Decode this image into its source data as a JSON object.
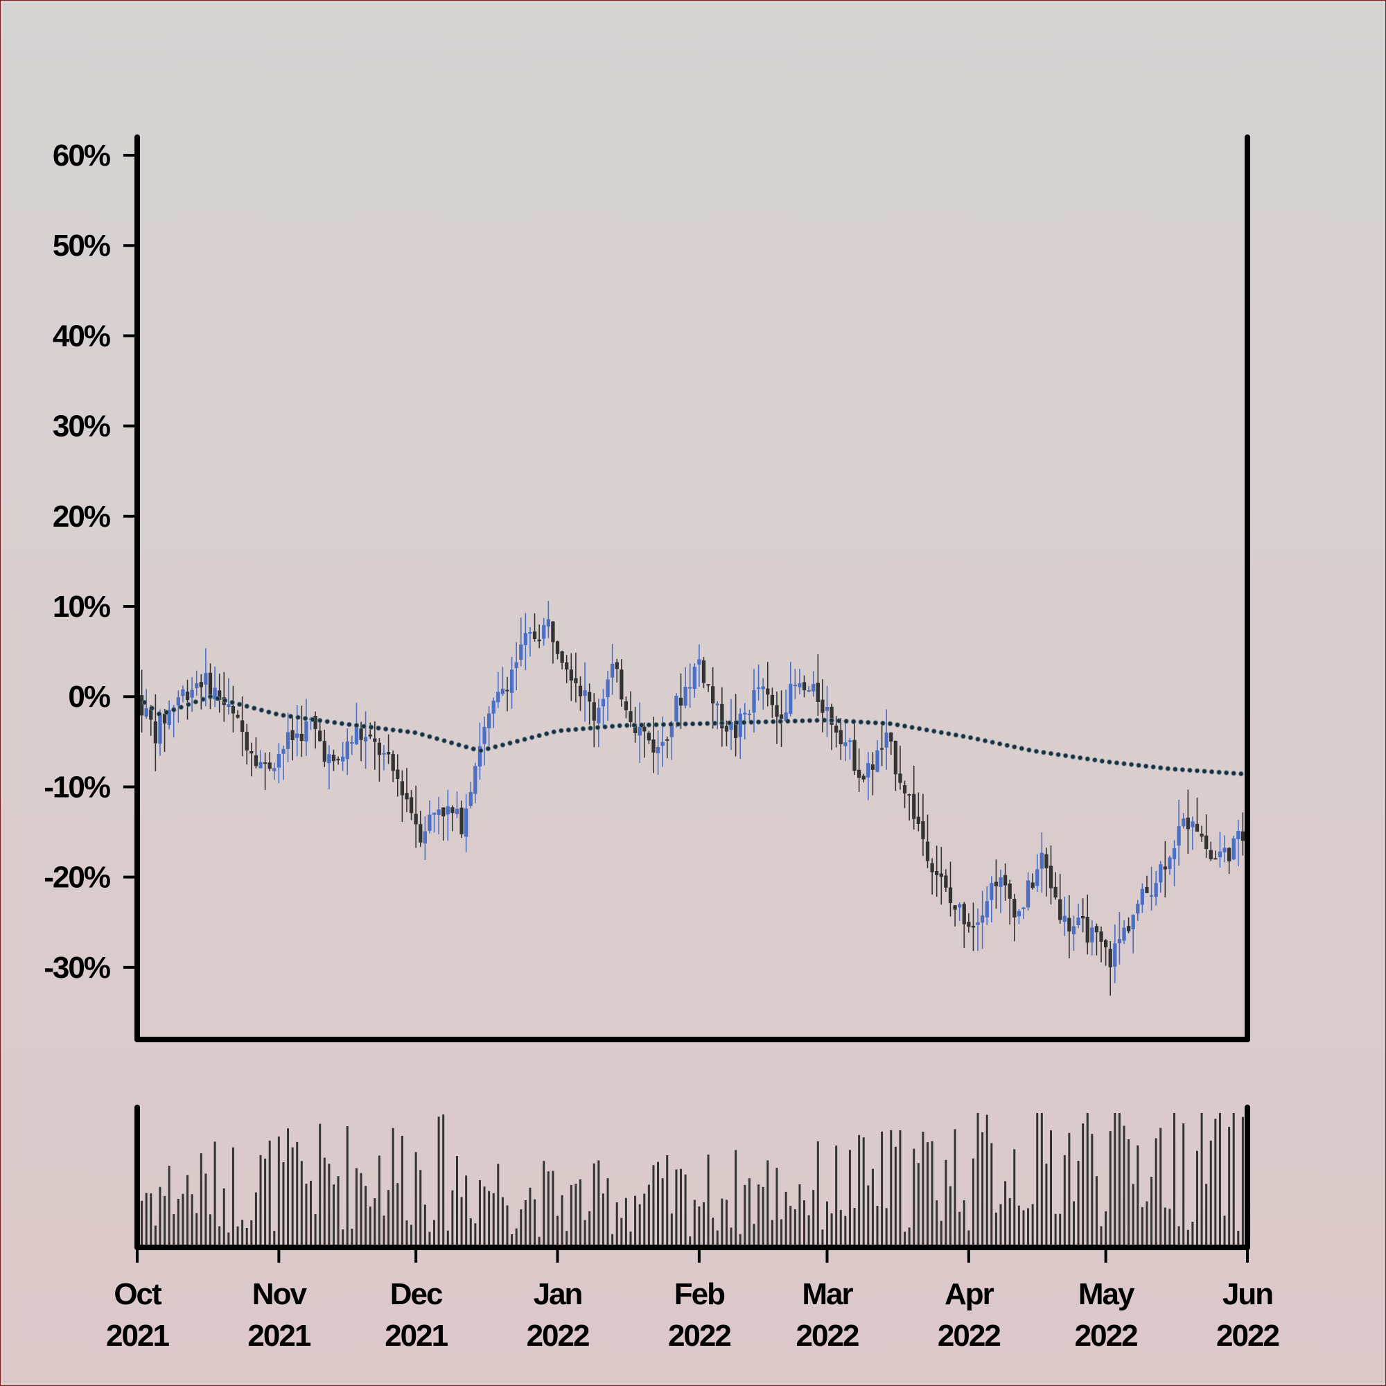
{
  "chart_data": {
    "type": "candlestick",
    "title": "",
    "xlabel": "",
    "ylabel": "",
    "y_axis_format": "percent change",
    "ylim": [
      -38,
      60
    ],
    "y_ticks": [
      60,
      50,
      40,
      30,
      20,
      10,
      0,
      -10,
      -20,
      -30
    ],
    "y_tick_labels": [
      "60%",
      "50%",
      "40%",
      "30%",
      "20%",
      "10%",
      "0%",
      "-10%",
      "-20%",
      "-30%"
    ],
    "x_range": [
      "2021-10-01",
      "2022-06-01"
    ],
    "x_ticks": [
      {
        "date": "2021-10-01",
        "month": "Oct",
        "year": "2021"
      },
      {
        "date": "2021-11-01",
        "month": "Nov",
        "year": "2021"
      },
      {
        "date": "2021-12-01",
        "month": "Dec",
        "year": "2021"
      },
      {
        "date": "2022-01-01",
        "month": "Jan",
        "year": "2022"
      },
      {
        "date": "2022-02-01",
        "month": "Feb",
        "year": "2022"
      },
      {
        "date": "2022-03-01",
        "month": "Mar",
        "year": "2022"
      },
      {
        "date": "2022-04-01",
        "month": "Apr",
        "year": "2022"
      },
      {
        "date": "2022-05-01",
        "month": "May",
        "year": "2022"
      },
      {
        "date": "2022-06-01",
        "month": "Jun",
        "year": "2022"
      }
    ],
    "price_path": [
      {
        "date": "2021-10-01",
        "value": 0
      },
      {
        "date": "2021-10-05",
        "value": -4
      },
      {
        "date": "2021-10-10",
        "value": 0
      },
      {
        "date": "2021-10-15",
        "value": 2
      },
      {
        "date": "2021-10-19",
        "value": 0
      },
      {
        "date": "2021-10-24",
        "value": -4
      },
      {
        "date": "2021-10-29",
        "value": -8
      },
      {
        "date": "2021-11-03",
        "value": -5
      },
      {
        "date": "2021-11-08",
        "value": -3
      },
      {
        "date": "2021-11-13",
        "value": -8
      },
      {
        "date": "2021-11-18",
        "value": -4
      },
      {
        "date": "2021-11-23",
        "value": -6
      },
      {
        "date": "2021-11-28",
        "value": -10
      },
      {
        "date": "2021-12-02",
        "value": -15
      },
      {
        "date": "2021-12-06",
        "value": -12
      },
      {
        "date": "2021-12-11",
        "value": -14
      },
      {
        "date": "2021-12-15",
        "value": -5
      },
      {
        "date": "2021-12-20",
        "value": 1
      },
      {
        "date": "2021-12-25",
        "value": 6
      },
      {
        "date": "2021-12-30",
        "value": 8
      },
      {
        "date": "2022-01-04",
        "value": 3
      },
      {
        "date": "2022-01-09",
        "value": -2
      },
      {
        "date": "2022-01-13",
        "value": 3
      },
      {
        "date": "2022-01-18",
        "value": -3
      },
      {
        "date": "2022-01-23",
        "value": -6
      },
      {
        "date": "2022-01-27",
        "value": -1
      },
      {
        "date": "2022-02-01",
        "value": 4
      },
      {
        "date": "2022-02-05",
        "value": -2
      },
      {
        "date": "2022-02-09",
        "value": -4
      },
      {
        "date": "2022-02-14",
        "value": 1
      },
      {
        "date": "2022-02-18",
        "value": -2
      },
      {
        "date": "2022-02-22",
        "value": 1
      },
      {
        "date": "2022-02-27",
        "value": 0
      },
      {
        "date": "2022-03-04",
        "value": -4
      },
      {
        "date": "2022-03-09",
        "value": -9
      },
      {
        "date": "2022-03-14",
        "value": -5
      },
      {
        "date": "2022-03-18",
        "value": -10
      },
      {
        "date": "2022-03-23",
        "value": -17
      },
      {
        "date": "2022-03-28",
        "value": -23
      },
      {
        "date": "2022-04-02",
        "value": -25
      },
      {
        "date": "2022-04-07",
        "value": -20
      },
      {
        "date": "2022-04-12",
        "value": -24
      },
      {
        "date": "2022-04-17",
        "value": -18
      },
      {
        "date": "2022-04-22",
        "value": -25
      },
      {
        "date": "2022-04-27",
        "value": -26
      },
      {
        "date": "2022-05-02",
        "value": -29
      },
      {
        "date": "2022-05-07",
        "value": -24
      },
      {
        "date": "2022-05-12",
        "value": -20
      },
      {
        "date": "2022-05-17",
        "value": -15
      },
      {
        "date": "2022-05-20",
        "value": -13
      },
      {
        "date": "2022-05-24",
        "value": -18
      },
      {
        "date": "2022-05-28",
        "value": -17
      },
      {
        "date": "2022-06-01",
        "value": -15
      }
    ],
    "moving_average": [
      {
        "date": "2021-10-01",
        "value": 0
      },
      {
        "date": "2021-10-06",
        "value": -2
      },
      {
        "date": "2021-10-17",
        "value": 0
      },
      {
        "date": "2021-11-01",
        "value": -2
      },
      {
        "date": "2021-11-15",
        "value": -3
      },
      {
        "date": "2021-12-01",
        "value": -4
      },
      {
        "date": "2021-12-15",
        "value": -6
      },
      {
        "date": "2022-01-01",
        "value": -3.8
      },
      {
        "date": "2022-01-15",
        "value": -3.2
      },
      {
        "date": "2022-02-01",
        "value": -3
      },
      {
        "date": "2022-02-15",
        "value": -2.8
      },
      {
        "date": "2022-03-01",
        "value": -2.6
      },
      {
        "date": "2022-03-15",
        "value": -3
      },
      {
        "date": "2022-04-01",
        "value": -4.5
      },
      {
        "date": "2022-04-15",
        "value": -6
      },
      {
        "date": "2022-05-01",
        "value": -7.2
      },
      {
        "date": "2022-05-15",
        "value": -8
      },
      {
        "date": "2022-06-01",
        "value": -8.6
      }
    ],
    "volume_range": [
      0,
      10
    ],
    "volume_profile": [
      {
        "date": "2021-10-01",
        "value": 4
      },
      {
        "date": "2021-11-01",
        "value": 5
      },
      {
        "date": "2021-12-01",
        "value": 6
      },
      {
        "date": "2022-01-01",
        "value": 3.5
      },
      {
        "date": "2022-02-01",
        "value": 4
      },
      {
        "date": "2022-03-01",
        "value": 4.5
      },
      {
        "date": "2022-04-01",
        "value": 6
      },
      {
        "date": "2022-05-01",
        "value": 7
      },
      {
        "date": "2022-06-01",
        "value": 6
      }
    ],
    "colors": {
      "up": "#4a6fc4",
      "down": "#333333",
      "moving_average": "#1c2e3c",
      "axis": "#000000"
    }
  }
}
